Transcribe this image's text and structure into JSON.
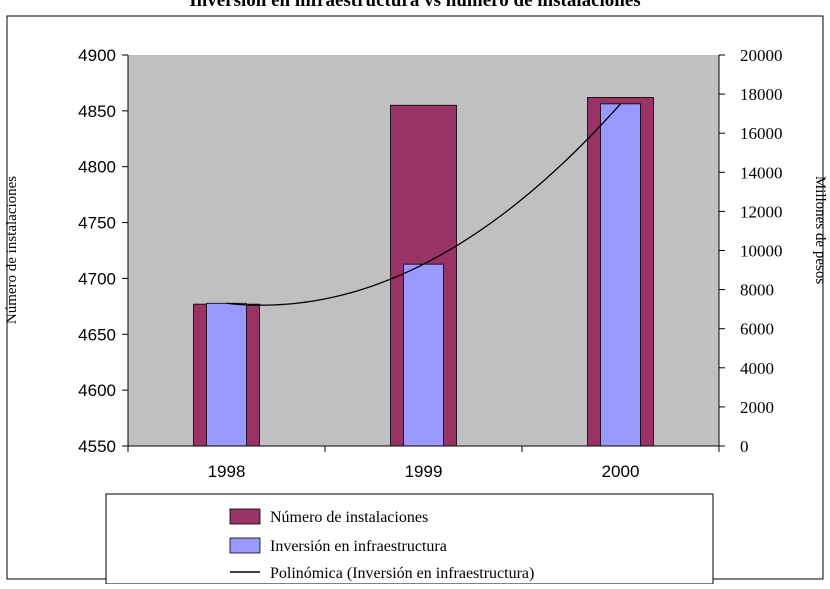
{
  "chart_data": {
    "type": "bar",
    "title": "Inversión en infraestructura vs número de instalaciones",
    "categories": [
      "1998",
      "1999",
      "2000"
    ],
    "left_axis": {
      "label": "Número de instalaciones",
      "ylim": [
        4550,
        4900
      ],
      "ticks": [
        4550,
        4600,
        4650,
        4700,
        4750,
        4800,
        4850,
        4900
      ]
    },
    "right_axis": {
      "label": "Millones de pesos",
      "ylim": [
        0,
        20000
      ],
      "ticks": [
        0,
        2000,
        4000,
        6000,
        8000,
        10000,
        12000,
        14000,
        16000,
        18000,
        20000
      ]
    },
    "series": [
      {
        "name": "Número de instalaciones",
        "axis": "left",
        "values": [
          4677,
          4855,
          4862
        ],
        "color": "#993366"
      },
      {
        "name": "Inversión en infraestructura",
        "axis": "right",
        "values": [
          7300,
          9300,
          17500
        ],
        "color": "#9999ff"
      }
    ],
    "trendline": {
      "name": "Polinómica (Inversión en infraestructura)",
      "axis": "right",
      "values": [
        7300,
        9300,
        17500
      ],
      "color": "#000000"
    },
    "plot_background": "#c0c0c0",
    "grid": false,
    "legend_position": "bottom"
  }
}
